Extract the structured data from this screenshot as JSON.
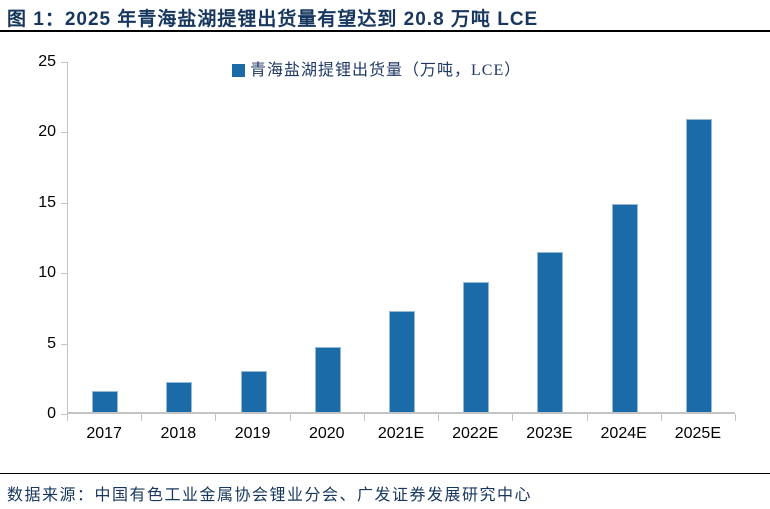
{
  "header": {
    "title": "图 1：2025 年青海盐湖提锂出货量有望达到 20.8 万吨 LCE"
  },
  "footer": {
    "source": "数据来源：中国有色工业金属协会锂业分会、广发证券发展研究中心"
  },
  "chart_data": {
    "type": "bar",
    "title": "",
    "series_name": "青海盐湖提锂出货量（万吨，LCE）",
    "categories": [
      "2017",
      "2018",
      "2019",
      "2020",
      "2021E",
      "2022E",
      "2023E",
      "2024E",
      "2025E"
    ],
    "values": [
      1.5,
      2.1,
      2.9,
      4.6,
      7.2,
      9.2,
      11.4,
      14.8,
      20.8
    ],
    "ylabel": "",
    "xlabel": "",
    "ylim": [
      0,
      25
    ],
    "yticks": [
      0,
      5,
      10,
      15,
      20,
      25
    ],
    "grid": false,
    "legend_position": "top-center",
    "colors": {
      "bar": "#1A6BA8",
      "bar_edge": "rgba(170,200,225,0.85)",
      "axis": "#C4C4C4",
      "tick_text": "#000000",
      "title_text": "#17375E",
      "legend_text": "#1F3864",
      "rule": "#000000"
    }
  }
}
